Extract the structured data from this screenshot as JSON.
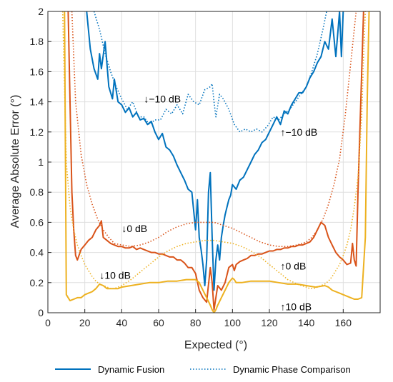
{
  "chart_data": {
    "type": "line",
    "title": "",
    "xlabel": "Expected (°)",
    "ylabel": "Average Absolute Error (°)",
    "xlim": [
      0,
      180
    ],
    "ylim": [
      0,
      2
    ],
    "xticks": [
      0,
      20,
      40,
      60,
      80,
      100,
      120,
      140,
      160
    ],
    "yticks": [
      0,
      0.2,
      0.4,
      0.6,
      0.8,
      1,
      1.2,
      1.4,
      1.6,
      1.8,
      2
    ],
    "xtick_labels": [
      "0",
      "20",
      "40",
      "60",
      "80",
      "100",
      "120",
      "140",
      "160"
    ],
    "ytick_labels": [
      "0",
      "0.2",
      "0.4",
      "0.6",
      "0.8",
      "1",
      "1.2",
      "1.4",
      "1.6",
      "1.8",
      "2"
    ],
    "grid": true,
    "legend_position": "bottom",
    "legend": [
      {
        "label": "Dynamic Fusion",
        "style": "solid",
        "color": "#0072BD"
      },
      {
        "label": "Dynamic Phase Comparison",
        "style": "dotted",
        "color": "#0072BD"
      }
    ],
    "annotations": [
      {
        "text": "↓−10 dB",
        "x": 52,
        "y": 1.42
      },
      {
        "text": "↑−10 dB",
        "x": 126,
        "y": 1.2
      },
      {
        "text": "↓0 dB",
        "x": 40,
        "y": 0.56
      },
      {
        "text": "↑0 dB",
        "x": 126,
        "y": 0.31
      },
      {
        "text": "↓10 dB",
        "x": 28,
        "y": 0.25
      },
      {
        "text": "↑10 dB",
        "x": 126,
        "y": 0.04
      }
    ],
    "series": [
      {
        "method": "Dynamic Fusion",
        "snr": "−10 dB",
        "style": "solid",
        "color": "#0072BD",
        "x": [
          21,
          23,
          25,
          27,
          28,
          29,
          31,
          33,
          35,
          36,
          38,
          40,
          42,
          44,
          46,
          48,
          50,
          52,
          54,
          56,
          58,
          60,
          62,
          64,
          66,
          68,
          70,
          72,
          74,
          76,
          78,
          80,
          81,
          82,
          83,
          84,
          85,
          86,
          87,
          88,
          89,
          90,
          91,
          92,
          93,
          94,
          95,
          96,
          97,
          98,
          99,
          100,
          102,
          104,
          106,
          108,
          110,
          112,
          114,
          116,
          118,
          120,
          122,
          124,
          126,
          128,
          130,
          132,
          134,
          136,
          138,
          140,
          142,
          144,
          146,
          148,
          150,
          152,
          154,
          156,
          158,
          159,
          160
        ],
        "y": [
          2.0,
          1.75,
          1.62,
          1.55,
          1.72,
          1.62,
          1.8,
          1.5,
          1.42,
          1.55,
          1.4,
          1.38,
          1.33,
          1.36,
          1.3,
          1.33,
          1.28,
          1.29,
          1.25,
          1.27,
          1.2,
          1.15,
          1.19,
          1.1,
          1.08,
          1.04,
          0.98,
          0.93,
          0.88,
          0.82,
          0.8,
          0.55,
          0.75,
          0.5,
          0.42,
          0.32,
          0.18,
          0.35,
          0.8,
          0.93,
          0.5,
          0.15,
          0.35,
          0.45,
          0.35,
          0.5,
          0.58,
          0.65,
          0.7,
          0.75,
          0.78,
          0.85,
          0.82,
          0.88,
          0.9,
          0.95,
          1.0,
          1.05,
          1.08,
          1.13,
          1.15,
          1.2,
          1.25,
          1.3,
          1.25,
          1.34,
          1.32,
          1.38,
          1.42,
          1.46,
          1.46,
          1.5,
          1.56,
          1.6,
          1.66,
          1.7,
          1.8,
          1.75,
          1.95,
          1.7,
          2.0,
          1.7,
          2.0
        ]
      },
      {
        "method": "Dynamic Phase Comparison",
        "snr": "−10 dB",
        "style": "dotted",
        "color": "#0072BD",
        "x": [
          25,
          28,
          31,
          34,
          37,
          40,
          43,
          46,
          49,
          52,
          55,
          58,
          61,
          64,
          67,
          70,
          73,
          76,
          79,
          82,
          85,
          88,
          89,
          90,
          91,
          93,
          95,
          98,
          101,
          104,
          107,
          110,
          113,
          116,
          119,
          122,
          125,
          128,
          131,
          134,
          137,
          140,
          143,
          146,
          149,
          151
        ],
        "y": [
          2.0,
          1.88,
          1.72,
          1.6,
          1.5,
          1.42,
          1.35,
          1.4,
          1.3,
          1.3,
          1.25,
          1.28,
          1.28,
          1.35,
          1.32,
          1.38,
          1.32,
          1.45,
          1.4,
          1.38,
          1.48,
          1.5,
          1.52,
          1.4,
          1.3,
          1.45,
          1.42,
          1.35,
          1.25,
          1.2,
          1.22,
          1.2,
          1.22,
          1.2,
          1.24,
          1.3,
          1.28,
          1.32,
          1.35,
          1.4,
          1.45,
          1.5,
          1.6,
          1.72,
          1.88,
          2.0
        ]
      },
      {
        "method": "Dynamic Fusion",
        "snr": "0 dB",
        "style": "solid",
        "color": "#D95319",
        "x": [
          11,
          12,
          13,
          14,
          15,
          16,
          18,
          20,
          22,
          24,
          26,
          28,
          29,
          30,
          32,
          34,
          36,
          38,
          40,
          42,
          44,
          46,
          48,
          50,
          52,
          54,
          56,
          58,
          60,
          62,
          64,
          66,
          68,
          70,
          72,
          74,
          76,
          78,
          79,
          80,
          82,
          84,
          86,
          88,
          89,
          90,
          91,
          92,
          94,
          96,
          98,
          100,
          101,
          102,
          104,
          106,
          108,
          110,
          112,
          114,
          116,
          118,
          120,
          122,
          124,
          126,
          128,
          130,
          132,
          134,
          136,
          138,
          140,
          142,
          144,
          146,
          148,
          150,
          152,
          154,
          156,
          158,
          160,
          162,
          164,
          165,
          166,
          167,
          168,
          170,
          171
        ],
        "y": [
          2.0,
          1.4,
          0.8,
          0.55,
          0.38,
          0.35,
          0.42,
          0.45,
          0.48,
          0.5,
          0.55,
          0.58,
          0.61,
          0.5,
          0.48,
          0.46,
          0.45,
          0.44,
          0.44,
          0.43,
          0.43,
          0.44,
          0.42,
          0.43,
          0.42,
          0.41,
          0.4,
          0.4,
          0.39,
          0.39,
          0.38,
          0.37,
          0.37,
          0.35,
          0.35,
          0.33,
          0.3,
          0.3,
          0.28,
          0.26,
          0.15,
          0.1,
          0.07,
          0.3,
          0.2,
          0.02,
          0.1,
          0.18,
          0.15,
          0.2,
          0.3,
          0.32,
          0.28,
          0.32,
          0.34,
          0.35,
          0.36,
          0.38,
          0.38,
          0.39,
          0.39,
          0.4,
          0.41,
          0.41,
          0.42,
          0.42,
          0.43,
          0.43,
          0.44,
          0.44,
          0.45,
          0.45,
          0.46,
          0.47,
          0.5,
          0.55,
          0.6,
          0.58,
          0.5,
          0.45,
          0.4,
          0.37,
          0.35,
          0.32,
          0.33,
          0.46,
          0.35,
          0.31,
          0.8,
          1.6,
          2.0
        ]
      },
      {
        "method": "Dynamic Phase Comparison",
        "snr": "0 dB",
        "style": "dotted",
        "color": "#D95319",
        "x": [
          13,
          15,
          18,
          21,
          24,
          27,
          30,
          33,
          36,
          40,
          45,
          50,
          55,
          60,
          65,
          70,
          75,
          80,
          85,
          90,
          95,
          100,
          105,
          110,
          115,
          120,
          125,
          130,
          135,
          140,
          143,
          146,
          149,
          152,
          155,
          158,
          161,
          164,
          167
        ],
        "y": [
          2.0,
          1.4,
          1.05,
          0.85,
          0.72,
          0.62,
          0.55,
          0.5,
          0.46,
          0.45,
          0.44,
          0.45,
          0.47,
          0.5,
          0.54,
          0.57,
          0.59,
          0.6,
          0.6,
          0.6,
          0.58,
          0.56,
          0.53,
          0.5,
          0.47,
          0.45,
          0.44,
          0.44,
          0.45,
          0.47,
          0.5,
          0.55,
          0.62,
          0.72,
          0.85,
          1.02,
          1.3,
          1.65,
          2.0
        ]
      },
      {
        "method": "Dynamic Fusion",
        "snr": "10 dB",
        "style": "solid",
        "color": "#EDB120",
        "x": [
          9,
          10,
          12,
          14,
          16,
          18,
          20,
          22,
          24,
          26,
          28,
          30,
          32,
          34,
          36,
          38,
          40,
          45,
          50,
          55,
          60,
          65,
          70,
          75,
          80,
          82,
          84,
          86,
          88,
          89,
          90,
          91,
          92,
          94,
          96,
          98,
          100,
          101,
          102,
          105,
          110,
          115,
          120,
          125,
          130,
          135,
          140,
          145,
          150,
          152,
          154,
          156,
          158,
          160,
          162,
          164,
          166,
          168,
          170,
          172,
          173,
          174
        ],
        "y": [
          2.0,
          0.12,
          0.08,
          0.09,
          0.1,
          0.1,
          0.12,
          0.13,
          0.14,
          0.16,
          0.19,
          0.18,
          0.16,
          0.16,
          0.16,
          0.16,
          0.17,
          0.18,
          0.19,
          0.2,
          0.2,
          0.21,
          0.21,
          0.22,
          0.22,
          0.2,
          0.15,
          0.1,
          0.05,
          0.02,
          0.0,
          0.02,
          0.05,
          0.1,
          0.15,
          0.2,
          0.23,
          0.22,
          0.2,
          0.2,
          0.21,
          0.21,
          0.21,
          0.2,
          0.19,
          0.19,
          0.18,
          0.17,
          0.18,
          0.17,
          0.15,
          0.14,
          0.13,
          0.12,
          0.11,
          0.1,
          0.09,
          0.09,
          0.1,
          0.5,
          1.4,
          2.0
        ]
      },
      {
        "method": "Dynamic Phase Comparison",
        "snr": "10 dB",
        "style": "dotted",
        "color": "#EDB120",
        "x": [
          8,
          9,
          10,
          12,
          14,
          16,
          18,
          20,
          22,
          24,
          26,
          28,
          30,
          32,
          34,
          36,
          38,
          40,
          45,
          50,
          55,
          60,
          65,
          70,
          75,
          80,
          85,
          90,
          95,
          100,
          105,
          110,
          115,
          120,
          125,
          130,
          135,
          140,
          142,
          144,
          146,
          148,
          150,
          152,
          154,
          156,
          158,
          160,
          162,
          164,
          166,
          168,
          170,
          171,
          172
        ],
        "y": [
          2.0,
          1.5,
          1.0,
          0.7,
          0.55,
          0.45,
          0.38,
          0.32,
          0.28,
          0.24,
          0.21,
          0.19,
          0.18,
          0.17,
          0.16,
          0.16,
          0.17,
          0.18,
          0.22,
          0.27,
          0.32,
          0.37,
          0.41,
          0.44,
          0.46,
          0.47,
          0.48,
          0.48,
          0.47,
          0.46,
          0.44,
          0.41,
          0.37,
          0.32,
          0.27,
          0.22,
          0.19,
          0.17,
          0.16,
          0.16,
          0.17,
          0.18,
          0.19,
          0.21,
          0.24,
          0.28,
          0.32,
          0.38,
          0.45,
          0.55,
          0.7,
          0.9,
          1.3,
          1.7,
          2.0
        ]
      }
    ]
  }
}
